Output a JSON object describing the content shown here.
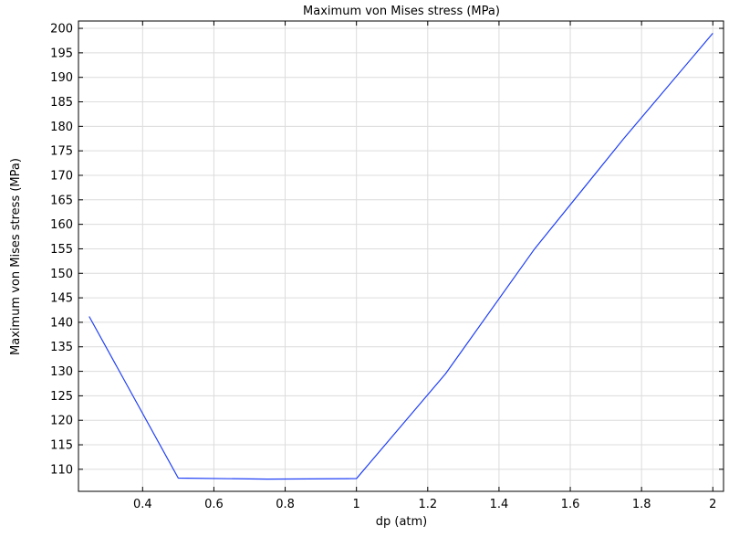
{
  "chart_data": {
    "type": "line",
    "title": "Maximum von Mises stress (MPa)",
    "xlabel": "dp (atm)",
    "ylabel": "Maximum von Mises stress (MPa)",
    "xlim": [
      0.22,
      2.03
    ],
    "ylim": [
      105.5,
      201.5
    ],
    "x_ticks": [
      0.4,
      0.6,
      0.8,
      1,
      1.2,
      1.4,
      1.6,
      1.8,
      2
    ],
    "x_tick_labels": [
      "0.4",
      "0.6",
      "0.8",
      "1",
      "1.2",
      "1.4",
      "1.6",
      "1.8",
      "2"
    ],
    "y_ticks": [
      110,
      115,
      120,
      125,
      130,
      135,
      140,
      145,
      150,
      155,
      160,
      165,
      170,
      175,
      180,
      185,
      190,
      195,
      200
    ],
    "y_tick_labels": [
      "110",
      "115",
      "120",
      "125",
      "130",
      "135",
      "140",
      "145",
      "150",
      "155",
      "160",
      "165",
      "170",
      "175",
      "180",
      "185",
      "190",
      "195",
      "200"
    ],
    "grid": true,
    "legend": "none",
    "series": [
      {
        "color": "#1f3ff5",
        "x": [
          0.25,
          0.5,
          0.75,
          1.0,
          1.25,
          1.5,
          1.75,
          2.0
        ],
        "y": [
          141.2,
          108.2,
          108.0,
          108.1,
          129.5,
          155.0,
          177.5,
          199.0
        ]
      }
    ]
  }
}
